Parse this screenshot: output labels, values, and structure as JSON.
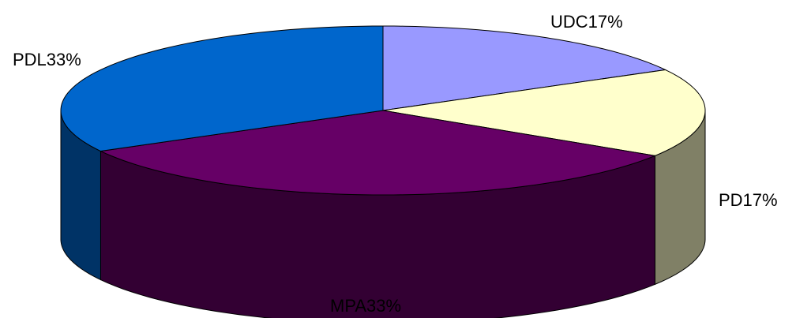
{
  "chart_data": {
    "type": "pie",
    "style": "3d",
    "slices": [
      {
        "name": "UDC",
        "value": 17,
        "label": "UDC17%",
        "color": "#9999ff",
        "side_color": "#6666cc"
      },
      {
        "name": "PD",
        "value": 17,
        "label": "PD17%",
        "color": "#ffffcc",
        "side_color": "#808066"
      },
      {
        "name": "MPA",
        "value": 33,
        "label": "MPA33%",
        "color": "#660066",
        "side_color": "#330033"
      },
      {
        "name": "PDL",
        "value": 33,
        "label": "PDL33%",
        "color": "#0066cc",
        "side_color": "#003366"
      }
    ]
  }
}
